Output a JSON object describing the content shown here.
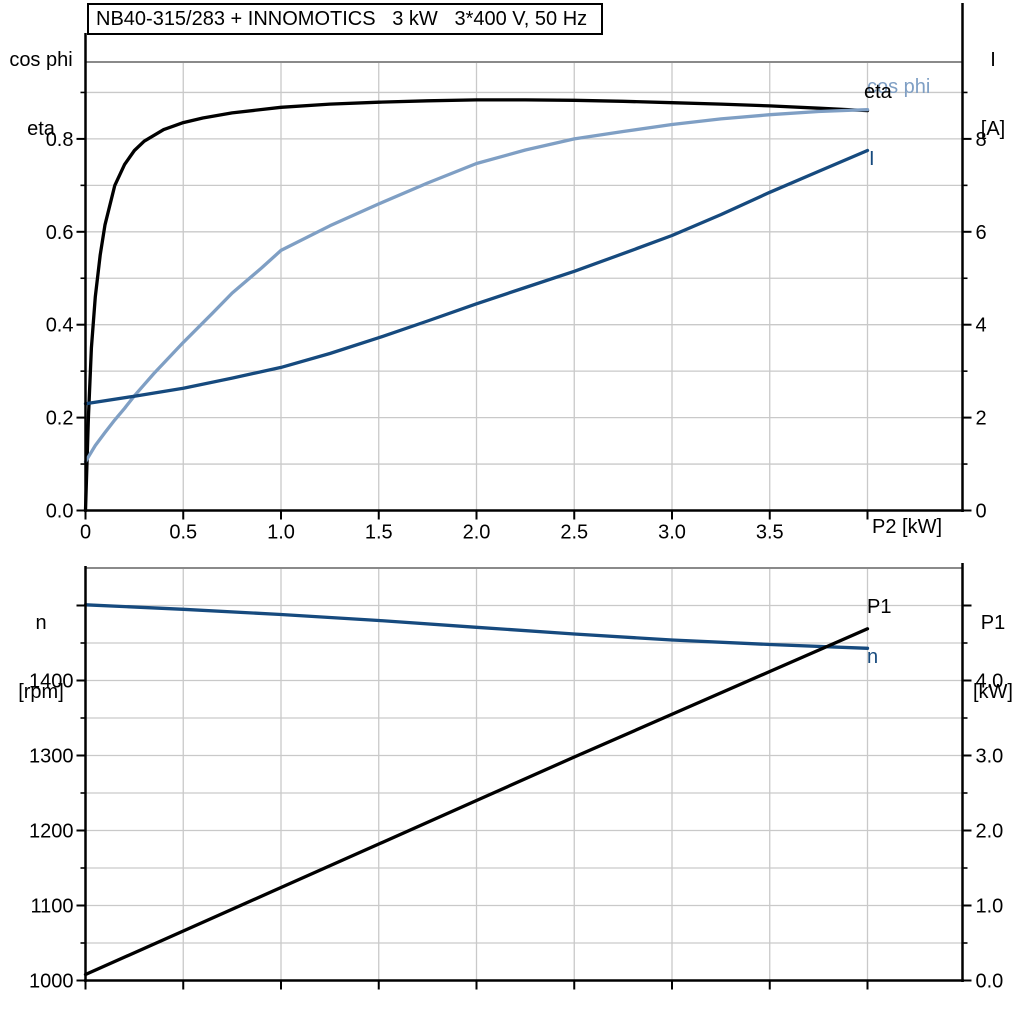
{
  "ui": {
    "title_box": "NB40-315/283 + INNOMOTICS   3 kW   3*400 V, 50 Hz",
    "top_chart": {
      "left_title_1": "cos phi",
      "left_title_2": "eta",
      "right_title_1": "I",
      "right_title_2": "[A]",
      "x_title": "P2 [kW]",
      "label_cos_phi": "cos phi",
      "label_eta": "eta",
      "label_current": "I"
    },
    "bottom_chart": {
      "left_title_1": "n",
      "left_title_2": "[rpm]",
      "right_title_1": "P1",
      "right_title_2": "[kW]",
      "label_p1": "P1",
      "label_n": "n"
    }
  },
  "colors": {
    "black": "#000000",
    "dark_blue": "#164a7e",
    "light_blue": "#7f9fc4",
    "grid": "#c9c9c9",
    "frame_top": "#8a8a8a",
    "axis": "#000000"
  },
  "chart_data": [
    {
      "type": "line",
      "title": "NB40-315/283 + INNOMOTICS 3 kW 3*400 V, 50 Hz",
      "grid": true,
      "x_axis": {
        "label": "P2 [kW]",
        "range": [
          0,
          4.49
        ],
        "major_ticks": [
          0,
          0.5,
          1.0,
          1.5,
          2.0,
          2.5,
          3.0,
          3.5,
          4.0
        ],
        "tick_labels": [
          "0",
          "0.5",
          "1.0",
          "1.5",
          "2.0",
          "2.5",
          "3.0",
          "3.5",
          ""
        ]
      },
      "left_axis": {
        "label": "cos phi / eta",
        "range": [
          0,
          0.965
        ],
        "major_ticks": [
          0,
          0.2,
          0.4,
          0.6,
          0.8
        ],
        "tick_labels": [
          "0.0",
          "0.2",
          "0.4",
          "0.6",
          "0.8"
        ],
        "minor_ticks": [
          0.1,
          0.3,
          0.5,
          0.7,
          0.9
        ]
      },
      "right_axis": {
        "label": "I [A]",
        "range": [
          0,
          9.65
        ],
        "major_ticks": [
          0,
          2,
          4,
          6,
          8
        ],
        "tick_labels": [
          "0",
          "2",
          "4",
          "6",
          "8"
        ],
        "minor_ticks": [
          1,
          3,
          5,
          7,
          9
        ]
      },
      "series": [
        {
          "name": "eta",
          "axis": "left",
          "color_key": "black",
          "points": [
            [
              0,
              0
            ],
            [
              0.015,
              0.2
            ],
            [
              0.03,
              0.35
            ],
            [
              0.05,
              0.46
            ],
            [
              0.075,
              0.55
            ],
            [
              0.1,
              0.615
            ],
            [
              0.15,
              0.7
            ],
            [
              0.2,
              0.745
            ],
            [
              0.25,
              0.775
            ],
            [
              0.3,
              0.795
            ],
            [
              0.4,
              0.82
            ],
            [
              0.5,
              0.835
            ],
            [
              0.6,
              0.845
            ],
            [
              0.75,
              0.856
            ],
            [
              1.0,
              0.868
            ],
            [
              1.25,
              0.875
            ],
            [
              1.5,
              0.879
            ],
            [
              1.75,
              0.882
            ],
            [
              2.0,
              0.884
            ],
            [
              2.25,
              0.884
            ],
            [
              2.5,
              0.883
            ],
            [
              2.75,
              0.881
            ],
            [
              3.0,
              0.878
            ],
            [
              3.25,
              0.875
            ],
            [
              3.5,
              0.871
            ],
            [
              3.75,
              0.866
            ],
            [
              4.0,
              0.861
            ]
          ]
        },
        {
          "name": "cos phi",
          "axis": "left",
          "color_key": "light_blue",
          "points": [
            [
              0,
              0.105
            ],
            [
              0.05,
              0.14
            ],
            [
              0.1,
              0.168
            ],
            [
              0.15,
              0.195
            ],
            [
              0.2,
              0.22
            ],
            [
              0.25,
              0.247
            ],
            [
              0.35,
              0.295
            ],
            [
              0.5,
              0.362
            ],
            [
              0.65,
              0.425
            ],
            [
              0.75,
              0.468
            ],
            [
              0.9,
              0.522
            ],
            [
              1.0,
              0.56
            ],
            [
              1.25,
              0.613
            ],
            [
              1.5,
              0.66
            ],
            [
              1.75,
              0.705
            ],
            [
              2.0,
              0.747
            ],
            [
              2.25,
              0.776
            ],
            [
              2.5,
              0.8
            ],
            [
              2.75,
              0.816
            ],
            [
              3.0,
              0.831
            ],
            [
              3.25,
              0.843
            ],
            [
              3.5,
              0.852
            ],
            [
              3.75,
              0.859
            ],
            [
              4.0,
              0.863
            ]
          ]
        },
        {
          "name": "I",
          "axis": "right",
          "color_key": "dark_blue",
          "points": [
            [
              0,
              2.3
            ],
            [
              0.25,
              2.46
            ],
            [
              0.5,
              2.63
            ],
            [
              0.75,
              2.85
            ],
            [
              1.0,
              3.08
            ],
            [
              1.25,
              3.38
            ],
            [
              1.5,
              3.72
            ],
            [
              1.75,
              4.08
            ],
            [
              2.0,
              4.45
            ],
            [
              2.25,
              4.8
            ],
            [
              2.5,
              5.15
            ],
            [
              2.75,
              5.53
            ],
            [
              3.0,
              5.92
            ],
            [
              3.25,
              6.37
            ],
            [
              3.5,
              6.85
            ],
            [
              3.75,
              7.3
            ],
            [
              4.0,
              7.75
            ]
          ]
        }
      ]
    },
    {
      "type": "line",
      "title": "",
      "grid": true,
      "x_axis": {
        "label": "",
        "range": [
          0,
          4.49
        ],
        "major_ticks": [
          0,
          0.5,
          1.0,
          1.5,
          2.0,
          2.5,
          3.0,
          3.5,
          4.0
        ],
        "tick_labels": [
          "",
          "",
          "",
          "",
          "",
          "",
          "",
          "",
          ""
        ]
      },
      "left_axis": {
        "label": "n [rpm]",
        "range": [
          1000,
          1550
        ],
        "major_ticks": [
          1000,
          1100,
          1200,
          1300,
          1400,
          1500
        ],
        "tick_labels": [
          "1000",
          "1100",
          "1200",
          "1300",
          "1400",
          ""
        ],
        "minor_ticks": [
          1050,
          1150,
          1250,
          1350,
          1450
        ]
      },
      "right_axis": {
        "label": "P1 [kW]",
        "range": [
          0,
          5.5
        ],
        "major_ticks": [
          0,
          1,
          2,
          3,
          4,
          5
        ],
        "tick_labels": [
          "0.0",
          "1.0",
          "2.0",
          "3.0",
          "4.0",
          ""
        ],
        "minor_ticks": [
          0.5,
          1.5,
          2.5,
          3.5,
          4.5
        ]
      },
      "series": [
        {
          "name": "n",
          "axis": "left",
          "color_key": "dark_blue",
          "points": [
            [
              0,
              1501
            ],
            [
              0.5,
              1495
            ],
            [
              1.0,
              1488
            ],
            [
              1.5,
              1480
            ],
            [
              2.0,
              1471
            ],
            [
              2.5,
              1462
            ],
            [
              3.0,
              1454
            ],
            [
              3.5,
              1448
            ],
            [
              4.0,
              1443
            ]
          ]
        },
        {
          "name": "P1",
          "axis": "right",
          "color_key": "black",
          "points": [
            [
              0,
              0.08
            ],
            [
              0.5,
              0.66
            ],
            [
              1.0,
              1.24
            ],
            [
              1.5,
              1.82
            ],
            [
              2.0,
              2.4
            ],
            [
              2.5,
              2.98
            ],
            [
              3.0,
              3.55
            ],
            [
              3.5,
              4.12
            ],
            [
              4.0,
              4.69
            ]
          ]
        }
      ]
    }
  ]
}
